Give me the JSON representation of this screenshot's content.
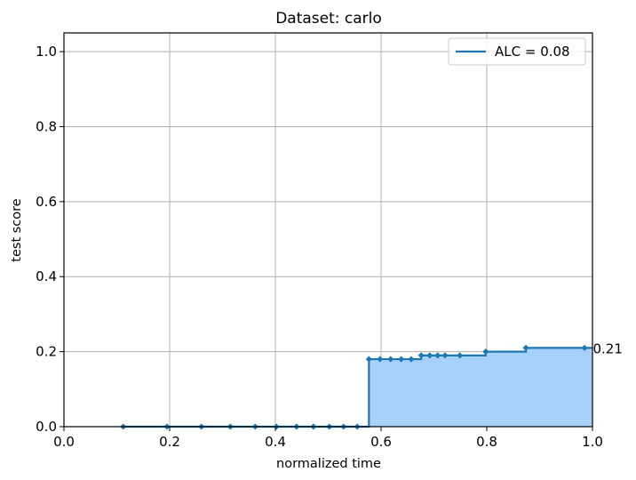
{
  "chart_data": {
    "type": "line",
    "title": "Dataset: carlo",
    "xlabel": "normalized time",
    "ylabel": "test score",
    "xlim": [
      0.0,
      1.0
    ],
    "ylim": [
      0.0,
      1.05
    ],
    "xticks": [
      "0.0",
      "0.2",
      "0.4",
      "0.6",
      "0.8",
      "1.0"
    ],
    "yticks": [
      "0.0",
      "0.2",
      "0.4",
      "0.6",
      "0.8",
      "1.0"
    ],
    "grid": true,
    "legend_position": "top-right",
    "step": "post",
    "filled": true,
    "series": [
      {
        "name": "ALC = 0.08",
        "color": "#1f77b4",
        "fill_color": "#a6d1fb",
        "x": [
          0.112,
          0.195,
          0.26,
          0.315,
          0.362,
          0.402,
          0.44,
          0.472,
          0.502,
          0.529,
          0.555,
          0.577,
          0.598,
          0.618,
          0.638,
          0.657,
          0.676,
          0.692,
          0.707,
          0.721,
          0.749,
          0.798,
          0.874,
          0.985
        ],
        "values": [
          0.0,
          0.0,
          0.0,
          0.0,
          0.0,
          0.0,
          0.0,
          0.0,
          0.0,
          0.0,
          0.0,
          0.18,
          0.18,
          0.18,
          0.18,
          0.18,
          0.19,
          0.19,
          0.19,
          0.19,
          0.19,
          0.2,
          0.21,
          0.21
        ]
      }
    ],
    "annotations": [
      {
        "text": "0.21",
        "x": 1.0,
        "y": 0.21
      }
    ]
  }
}
